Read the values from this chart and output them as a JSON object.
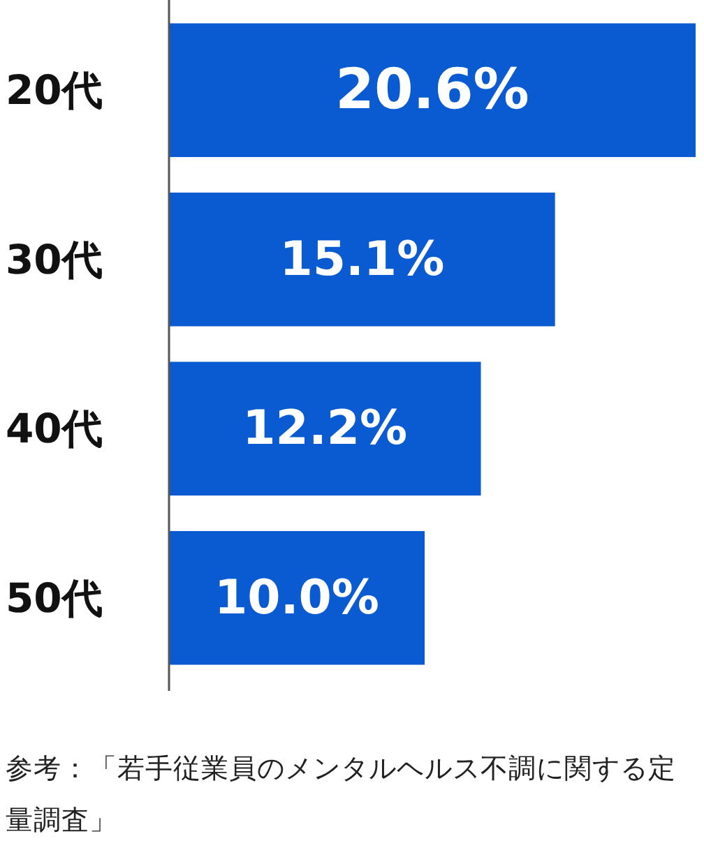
{
  "chart_data": {
    "type": "bar",
    "orientation": "horizontal",
    "categories": [
      "20代",
      "30代",
      "40代",
      "50代"
    ],
    "values": [
      20.6,
      15.1,
      12.2,
      10.0
    ],
    "value_labels": [
      "20.6%",
      "15.1%",
      "12.2%",
      "10.0%"
    ],
    "color": "#0a5bd1",
    "annotations": [
      "参考：「若手従業員のメンタルヘルス不調に関する定量調査」"
    ]
  }
}
